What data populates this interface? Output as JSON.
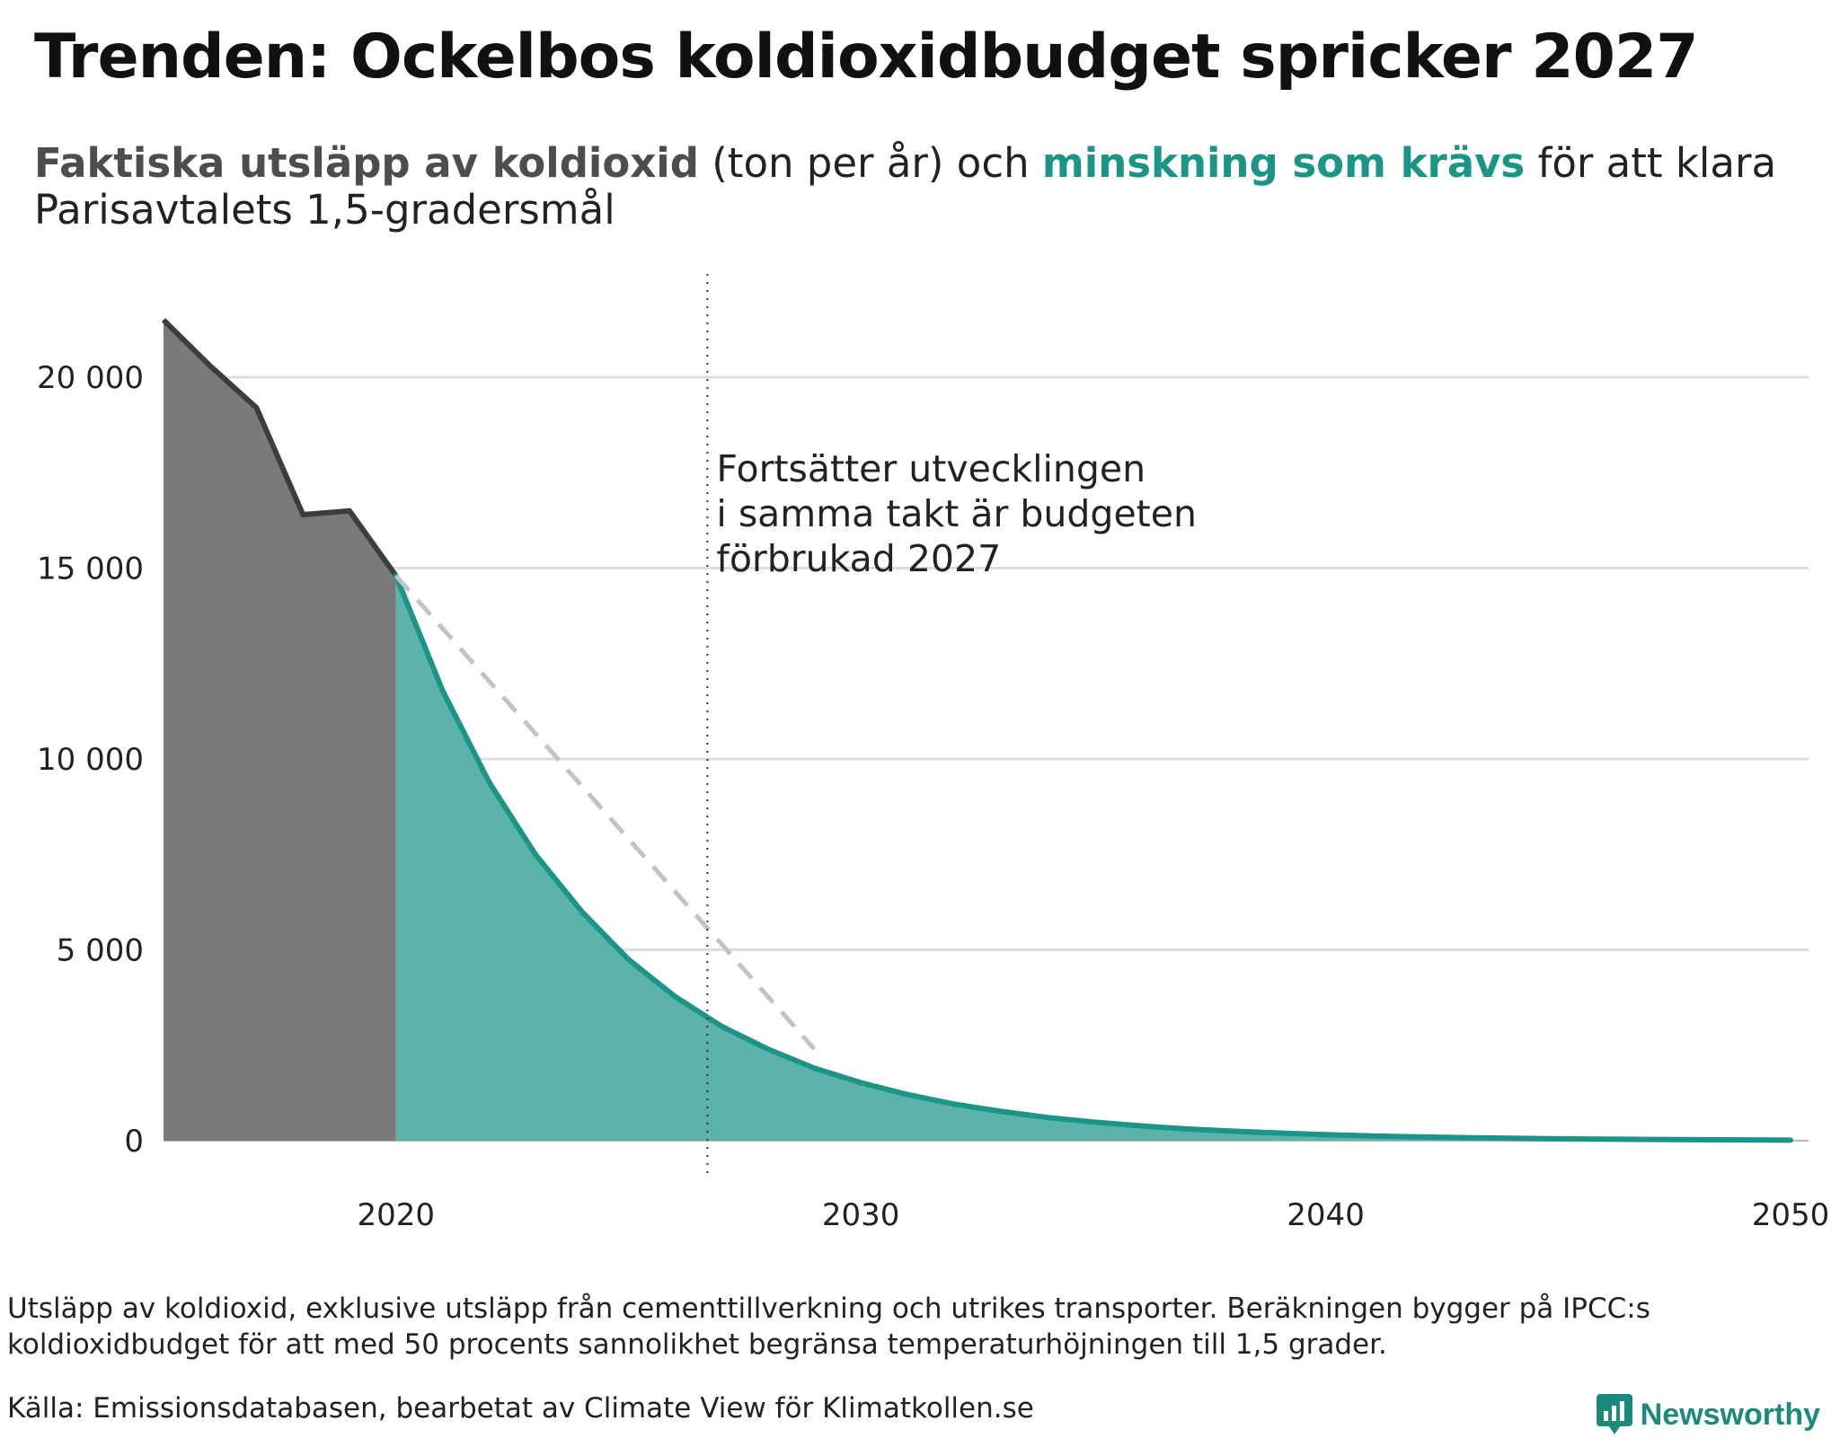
{
  "title": "Trenden: Ockelbos koldioxidbudget spricker 2027",
  "subtitle": {
    "actual_label": "Faktiska utsläpp av koldioxid",
    "unit_text": " (ton per år) och ",
    "required_label": "minskning som krävs",
    "rest_text": " för att klara Parisavtalets 1,5-gradersmål"
  },
  "colors": {
    "actual_fill": "#7a7a7a",
    "actual_line": "#3d3d3d",
    "required_fill": "#5bb3ac",
    "required_line": "#1b9586",
    "trend_line": "#c2c2cc",
    "grid": "#dddddd",
    "brand": "#1b8a7c"
  },
  "chart_data": {
    "type": "area",
    "xlim": [
      2015,
      2050
    ],
    "ylim": [
      0,
      22000
    ],
    "yticks": [
      {
        "value": 0,
        "label": "0"
      },
      {
        "value": 5000,
        "label": "5 000"
      },
      {
        "value": 10000,
        "label": "10 000"
      },
      {
        "value": 15000,
        "label": "15 000"
      },
      {
        "value": 20000,
        "label": "20 000"
      }
    ],
    "xticks": [
      {
        "value": 2020,
        "label": "2020"
      },
      {
        "value": 2030,
        "label": "2030"
      },
      {
        "value": 2040,
        "label": "2040"
      },
      {
        "value": 2050,
        "label": "2050"
      }
    ],
    "grid": true,
    "series": [
      {
        "name": "Faktiska utsläpp av koldioxid",
        "x": [
          2015,
          2016,
          2017,
          2018,
          2019,
          2020
        ],
        "values": [
          21500,
          20300,
          19200,
          16400,
          16500,
          14800
        ]
      },
      {
        "name": "Minskning som krävs",
        "x": [
          2020,
          2021,
          2022,
          2023,
          2024,
          2025,
          2026,
          2027,
          2028,
          2029,
          2030,
          2031,
          2032,
          2033,
          2034,
          2035,
          2036,
          2037,
          2038,
          2039,
          2040,
          2041,
          2042,
          2043,
          2044,
          2045,
          2046,
          2047,
          2048,
          2049,
          2050
        ],
        "values": [
          14800,
          11800,
          9400,
          7500,
          6000,
          4750,
          3780,
          3000,
          2400,
          1900,
          1520,
          1210,
          960,
          770,
          610,
          490,
          390,
          310,
          250,
          200,
          160,
          125,
          100,
          80,
          64,
          51,
          40,
          32,
          26,
          20,
          16
        ]
      },
      {
        "name": "Trend",
        "style": "dashed",
        "x": [
          2020,
          2029
        ],
        "values": [
          14800,
          2400
        ]
      }
    ],
    "marker": {
      "x": 2026.7,
      "style": "dotted",
      "annotation": [
        "Fortsätter utvecklingen",
        "i samma takt är budgeten",
        "förbrukad 2027"
      ]
    }
  },
  "footnote": "Utsläpp av koldioxid, exklusive utsläpp från cementtillverkning och utrikes transporter. Beräkningen bygger på IPCC:s koldioxidbudget för att med 50 procents sannolikhet begränsa temperaturhöjningen till 1,5 grader.",
  "source": "Källa: Emissionsdatabasen, bearbetat av Climate View för Klimatkollen.se",
  "brand": {
    "name": "Newsworthy",
    "icon": "newsworthy-logo-icon"
  }
}
